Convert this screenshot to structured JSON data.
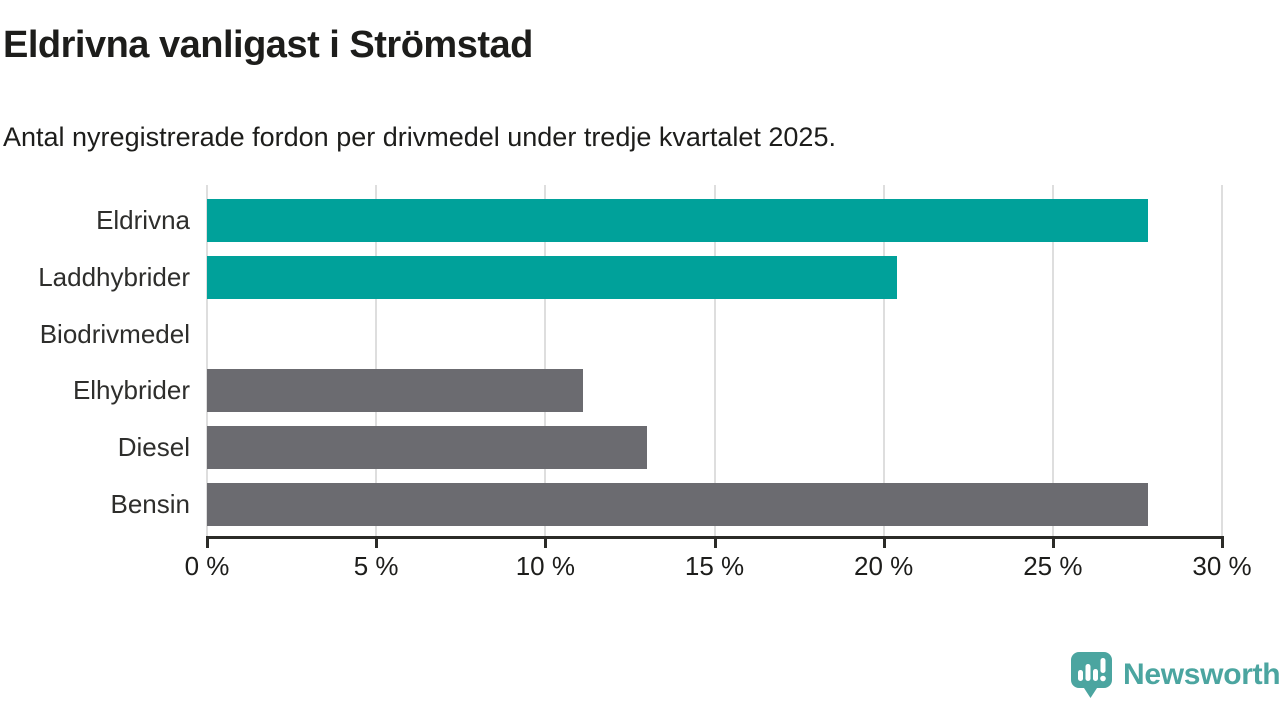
{
  "header": {
    "title": "Eldrivna vanligast i Strömstad",
    "subtitle": "Antal nyregistrerade fordon per drivmedel under tredje kvartalet 2025."
  },
  "chart_data": {
    "type": "bar",
    "orientation": "horizontal",
    "title": "Eldrivna vanligast i Strömstad",
    "subtitle": "Antal nyregistrerade fordon per drivmedel under tredje kvartalet 2025.",
    "categories": [
      "Eldrivna",
      "Laddhybrider",
      "Biodrivmedel",
      "Elhybrider",
      "Diesel",
      "Bensin"
    ],
    "values": [
      27.8,
      20.4,
      0,
      11.1,
      13.0,
      27.8
    ],
    "unit": "%",
    "xlim": [
      0,
      30
    ],
    "x_ticks": [
      0,
      5,
      10,
      15,
      20,
      25,
      30
    ],
    "x_tick_labels": [
      "0 %",
      "5 %",
      "10 %",
      "15 %",
      "20 %",
      "25 %",
      "30 %"
    ],
    "bar_colors": [
      "#00a19a",
      "#00a19a",
      "#6b6b70",
      "#6b6b70",
      "#6b6b70",
      "#6b6b70"
    ],
    "grid": true,
    "legend": false
  },
  "colors": {
    "electric_bar": "#00a19a",
    "other_bar": "#6b6b70",
    "brand": "#4ba5a0",
    "gridline": "#dedede",
    "axis": "#2b2b28",
    "text": "#1d1d1b"
  },
  "footer": {
    "brand_name": "Newsworthy",
    "brand_icon": "newsworthy-speech-bubble-chart-icon"
  }
}
